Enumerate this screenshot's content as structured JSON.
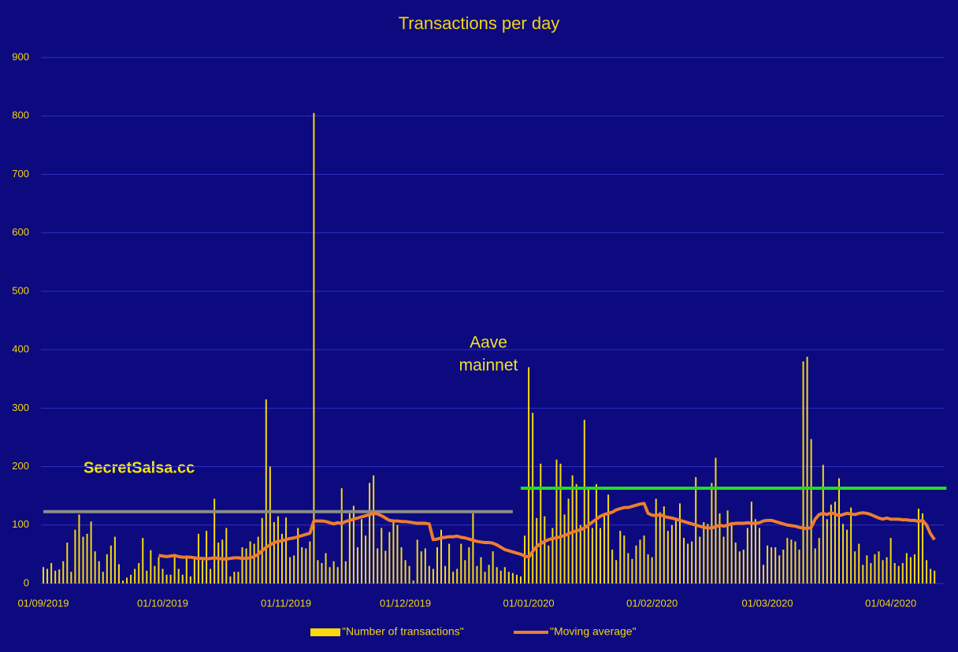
{
  "chart_data": {
    "type": "bar_line",
    "title": "Transactions per day",
    "categories": [
      "01/09/2019",
      null,
      null,
      null,
      null,
      null,
      null,
      null,
      null,
      null,
      null,
      null,
      null,
      null,
      null,
      null,
      null,
      null,
      null,
      null,
      null,
      null,
      null,
      null,
      null,
      null,
      null,
      null,
      null,
      null,
      "01/10/2019",
      null,
      null,
      null,
      null,
      null,
      null,
      null,
      null,
      null,
      null,
      null,
      null,
      null,
      null,
      null,
      null,
      null,
      null,
      null,
      null,
      null,
      null,
      null,
      null,
      null,
      null,
      null,
      null,
      null,
      null,
      "01/11/2019",
      null,
      null,
      null,
      null,
      null,
      null,
      null,
      null,
      null,
      null,
      null,
      null,
      null,
      null,
      null,
      null,
      null,
      null,
      null,
      null,
      null,
      null,
      null,
      null,
      null,
      null,
      null,
      null,
      null,
      "01/12/2019",
      null,
      null,
      null,
      null,
      null,
      null,
      null,
      null,
      null,
      null,
      null,
      null,
      null,
      null,
      null,
      null,
      null,
      null,
      null,
      null,
      null,
      null,
      null,
      null,
      null,
      null,
      null,
      null,
      null,
      null,
      "01/01/2020",
      null,
      null,
      null,
      null,
      null,
      null,
      null,
      null,
      null,
      null,
      null,
      null,
      null,
      null,
      null,
      null,
      null,
      null,
      null,
      null,
      null,
      null,
      null,
      null,
      null,
      null,
      null,
      null,
      null,
      null,
      "01/02/2020",
      null,
      null,
      null,
      null,
      null,
      null,
      null,
      null,
      null,
      null,
      null,
      null,
      null,
      null,
      null,
      null,
      null,
      null,
      null,
      null,
      null,
      null,
      null,
      null,
      null,
      null,
      null,
      null,
      "01/03/2020",
      null,
      null,
      null,
      null,
      null,
      null,
      null,
      null,
      null,
      null,
      null,
      null,
      null,
      null,
      null,
      null,
      null,
      null,
      null,
      null,
      null,
      null,
      null,
      null,
      null,
      null,
      null,
      null,
      null,
      null,
      "01/04/2020",
      null,
      null,
      null,
      null,
      null,
      null,
      null,
      null,
      null,
      null,
      null
    ],
    "series": [
      {
        "name": "\"Number of transactions\"",
        "color": "#f7d90d",
        "kind": "bar",
        "values": [
          28,
          25,
          35,
          22,
          24,
          38,
          70,
          20,
          92,
          118,
          80,
          85,
          106,
          55,
          38,
          20,
          50,
          65,
          80,
          33,
          5,
          10,
          15,
          25,
          35,
          78,
          22,
          57,
          30,
          45,
          25,
          15,
          15,
          45,
          25,
          15,
          48,
          12,
          45,
          85,
          40,
          90,
          25,
          145,
          70,
          75,
          95,
          12,
          20,
          20,
          62,
          60,
          72,
          68,
          80,
          112,
          315,
          200,
          105,
          115,
          85,
          113,
          45,
          48,
          95,
          62,
          60,
          72,
          805,
          40,
          35,
          52,
          28,
          38,
          28,
          163,
          38,
          120,
          133,
          62,
          110,
          82,
          172,
          185,
          60,
          95,
          56,
          88,
          105,
          100,
          62,
          40,
          30,
          5,
          75,
          55,
          60,
          30,
          25,
          62,
          92,
          30,
          68,
          20,
          25,
          68,
          40,
          62,
          120,
          30,
          45,
          20,
          32,
          55,
          28,
          22,
          28,
          20,
          18,
          15,
          12,
          82,
          370,
          292,
          112,
          205,
          115,
          65,
          95,
          212,
          205,
          118,
          145,
          185,
          170,
          100,
          280,
          162,
          95,
          170,
          95,
          118,
          152,
          58,
          40,
          90,
          82,
          52,
          42,
          65,
          75,
          82,
          50,
          45,
          145,
          122,
          132,
          90,
          100,
          110,
          137,
          78,
          68,
          72,
          182,
          80,
          105,
          102,
          172,
          215,
          120,
          80,
          125,
          105,
          70,
          55,
          58,
          95,
          140,
          110,
          95,
          32,
          65,
          62,
          62,
          48,
          58,
          78,
          75,
          72,
          58,
          380,
          388,
          247,
          60,
          78,
          203,
          110,
          135,
          140,
          180,
          102,
          92,
          130,
          55,
          68,
          32,
          48,
          35,
          50,
          55,
          40,
          45,
          78,
          35,
          30,
          35,
          52,
          45,
          50,
          128,
          120,
          40,
          25,
          22
        ]
      },
      {
        "name": "\"Moving average\"",
        "color": "#ed7d31",
        "kind": "line",
        "values": [
          null,
          null,
          null,
          null,
          null,
          null,
          null,
          null,
          null,
          null,
          null,
          null,
          null,
          null,
          null,
          null,
          null,
          null,
          null,
          null,
          null,
          null,
          null,
          null,
          null,
          null,
          null,
          null,
          null,
          48,
          47,
          46,
          47,
          48,
          46,
          45,
          45,
          45,
          44,
          43,
          43,
          42,
          43,
          44,
          43,
          42,
          42,
          43,
          44,
          44,
          43,
          43,
          44,
          46,
          50,
          56,
          62,
          66,
          70,
          72,
          73,
          75,
          77,
          78,
          80,
          82,
          84,
          86,
          107,
          107,
          107,
          106,
          104,
          102,
          104,
          103,
          106,
          108,
          110,
          112,
          114,
          116,
          118,
          120,
          119,
          116,
          112,
          108,
          107,
          107,
          106,
          106,
          105,
          104,
          103,
          103,
          103,
          102,
          75,
          76,
          78,
          79,
          80,
          80,
          81,
          79,
          78,
          76,
          74,
          72,
          71,
          70,
          70,
          69,
          66,
          62,
          58,
          56,
          54,
          52,
          50,
          47,
          45,
          55,
          63,
          68,
          72,
          75,
          77,
          78,
          80,
          82,
          85,
          88,
          90,
          92,
          95,
          100,
          105,
          110,
          115,
          118,
          120,
          122,
          126,
          128,
          130,
          130,
          132,
          134,
          136,
          137,
          120,
          117,
          116,
          118,
          115,
          113,
          112,
          110,
          108,
          106,
          104,
          102,
          100,
          98,
          96,
          95,
          95,
          97,
          100,
          98,
          100,
          102,
          103,
          103,
          103,
          104,
          103,
          103,
          104,
          107,
          108,
          108,
          106,
          104,
          102,
          100,
          99,
          98,
          96,
          95,
          94,
          96,
          110,
          118,
          120,
          118,
          121,
          119,
          116,
          118,
          120,
          119,
          118,
          120,
          121,
          120,
          118,
          115,
          112,
          110,
          112,
          110,
          110,
          110,
          109,
          109,
          108,
          108,
          106,
          108,
          100,
          85,
          75
        ]
      }
    ],
    "reference_lines": [
      {
        "value": 123,
        "color": "#8c8c8c",
        "x_range": [
          0,
          118
        ]
      },
      {
        "value": 163,
        "color": "#22dd22",
        "x_range": [
          120,
          227
        ]
      }
    ],
    "annotations": [
      "Aave",
      "mainnet",
      "SecretSalsa.cc"
    ],
    "ylim": [
      0,
      900
    ],
    "yticks": [
      0,
      100,
      200,
      300,
      400,
      500,
      600,
      700,
      800,
      900
    ],
    "grid": true,
    "legend": "bottom"
  }
}
